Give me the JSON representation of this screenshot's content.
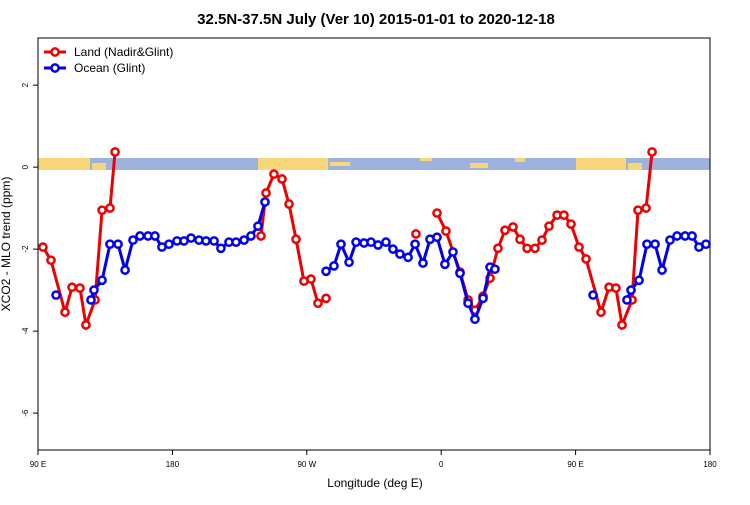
{
  "chart_data": {
    "type": "line",
    "title": "32.5N-37.5N July (Ver 10)   2015-01-01 to 2020-12-18",
    "x_label": "Longitude (deg E)",
    "y_label": "XCO2 - MLO trend (ppm)",
    "xlim": [
      90,
      540
    ],
    "xticks": [
      {
        "value": 90,
        "label": "90 E"
      },
      {
        "value": 180,
        "label": "180"
      },
      {
        "value": 270,
        "label": "90 W"
      },
      {
        "value": 360,
        "label": "0"
      },
      {
        "value": 450,
        "label": "90 E"
      },
      {
        "value": 540,
        "label": "180"
      }
    ],
    "ylim": [
      -6.9,
      3.15
    ],
    "yticks": [
      -6,
      -4,
      -2,
      0,
      2
    ],
    "legend": "top-left",
    "series": [
      {
        "name": "Land (Nadir&Glint)",
        "color": "#ee0000",
        "x": [
          93.3,
          98.7,
          108.1,
          112.8,
          118.1,
          122.1,
          128.2,
          132.9,
          138.2,
          141.6,
          190,
          239.3,
          242.7,
          248.0,
          253.4,
          258.1,
          262.8,
          268.1,
          272.8,
          277.5,
          282.9,
          310,
          343.1,
          350,
          357.2,
          363.2,
          372.6,
          378.0,
          382.6,
          388.0,
          392.7,
          398.0,
          402.7,
          408.1,
          412.8,
          417.5,
          422.8,
          427.5,
          432.2,
          437.6,
          442.2,
          446.9,
          452.3,
          457.0,
          467.0,
          472.4,
          477.0,
          481.1,
          487.8,
          491.8,
          497.2,
          501.2
        ],
        "values": [
          -1.95,
          -2.27,
          -3.54,
          -2.93,
          -2.95,
          -3.85,
          -3.24,
          -1.05,
          -1.0,
          0.37,
          null,
          -1.68,
          -0.63,
          -0.17,
          -0.29,
          -0.9,
          -1.76,
          -2.78,
          -2.73,
          -3.32,
          -3.2,
          null,
          -1.63,
          null,
          -1.12,
          -1.56,
          -2.56,
          -3.24,
          -3.49,
          -3.15,
          -2.71,
          -1.98,
          -1.54,
          -1.46,
          -1.76,
          -1.98,
          -1.98,
          -1.78,
          -1.44,
          -1.17,
          -1.17,
          -1.39,
          -1.95,
          -2.24,
          -3.54,
          -2.93,
          -2.95,
          -3.85,
          -3.24,
          -1.05,
          -1.0,
          0.37
        ]
      },
      {
        "name": "Ocean (Glint)",
        "color": "#0000ee",
        "x": [
          102.1,
          114,
          125.5,
          127.5,
          132.9,
          138.2,
          143.6,
          148.3,
          153.6,
          158.3,
          163.7,
          168.3,
          173.0,
          177.7,
          183.1,
          187.8,
          192.5,
          197.8,
          202.5,
          207.9,
          212.5,
          217.9,
          222.6,
          228.0,
          232.6,
          237.3,
          242.0,
          262,
          282.9,
          288.2,
          292.9,
          298.3,
          303.0,
          308.3,
          313.0,
          317.7,
          323.0,
          327.7,
          332.4,
          337.8,
          342.5,
          347.8,
          352.5,
          357.2,
          362.5,
          367.9,
          372.6,
          378.0,
          382.6,
          388.0,
          392.7,
          396.0,
          430,
          461.7,
          473,
          484.4,
          487.1,
          492.5,
          497.8,
          503.2,
          507.9,
          513.2,
          517.9,
          523.3,
          528.0,
          532.6,
          537.3
        ],
        "values": [
          -3.12,
          null,
          -3.24,
          -3.0,
          -2.76,
          -1.88,
          -1.88,
          -2.51,
          -1.78,
          -1.68,
          -1.68,
          -1.68,
          -1.95,
          -1.88,
          -1.8,
          -1.8,
          -1.73,
          -1.78,
          -1.8,
          -1.8,
          -1.98,
          -1.83,
          -1.83,
          -1.78,
          -1.68,
          -1.44,
          -0.85,
          null,
          -2.54,
          -2.41,
          -1.88,
          -2.32,
          -1.83,
          -1.85,
          -1.83,
          -1.9,
          -1.83,
          -2.0,
          -2.12,
          -2.2,
          -1.88,
          -2.34,
          -1.76,
          -1.71,
          -2.37,
          -2.07,
          -2.59,
          -3.32,
          -3.71,
          -3.2,
          -2.44,
          -2.49,
          null,
          -3.12,
          null,
          -3.24,
          -3.0,
          -2.76,
          -1.88,
          -1.88,
          -2.51,
          -1.78,
          -1.68,
          -1.68,
          -1.68,
          -1.95,
          -1.88
        ]
      }
    ]
  }
}
